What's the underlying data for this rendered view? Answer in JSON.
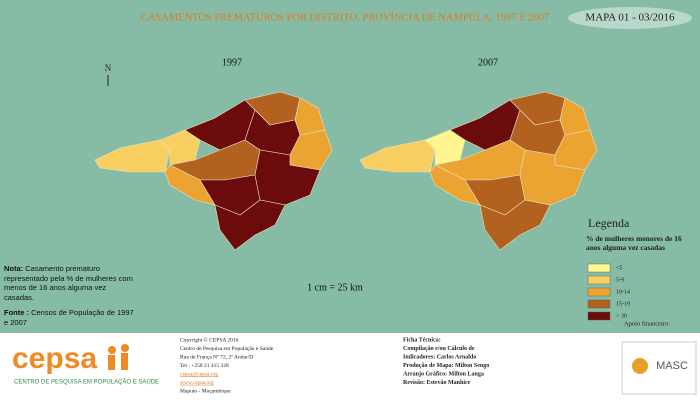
{
  "header": {
    "title": "CASAMENTOS PREMATUROS POR DISTRITO, PROVÍNCIA DE NAMPULA, 1997 E 2007",
    "map_id": "MAPA 01 - 03/2016"
  },
  "maps": [
    {
      "label": "1997"
    },
    {
      "label": "2007"
    }
  ],
  "north": "N",
  "scale": "1 cm = 25 km",
  "legend": {
    "title": "Legenda",
    "subtitle": "% de mulheres menores de 16 anos alguma vez casadas",
    "items": [
      "<5",
      "5-9",
      "10-14",
      "15-19",
      "> 30"
    ]
  },
  "note": {
    "label": "Nota:",
    "text": "Casamento prematuro representado pela % de mulheres com menos de 16 anos alguma vez casadas."
  },
  "source": {
    "label": "Fonte :",
    "text": "Censos de População de 1997 e 2007"
  },
  "contact": [
    "Copyright © CEPSA 2016",
    "Centro de Pesquisa em População e Saúde",
    "Rua de França Nº 72, 2º Andar/D",
    "Tel : +258 21 415 328",
    "cepsa@cepsa.org",
    "www.cepsa.org",
    "Maputo - Moçambique"
  ],
  "credits": [
    "Ficha Técnica:",
    "Compilação e/ou Cálculo de",
    "Indicadores: Carlos Arnaldo",
    "Produção de Mapa: Milton Sengo",
    "Arranjo Gráfico: Milton Langa",
    "Revisão: Estevão Manhice"
  ],
  "sponsor": {
    "label": "Apoio financeiro:",
    "name": "MASC"
  },
  "logo": {
    "name": "cepsa",
    "tagline": "CENTRO DE PESQUISA EM POPULAÇÃO E SAÚDE"
  }
}
